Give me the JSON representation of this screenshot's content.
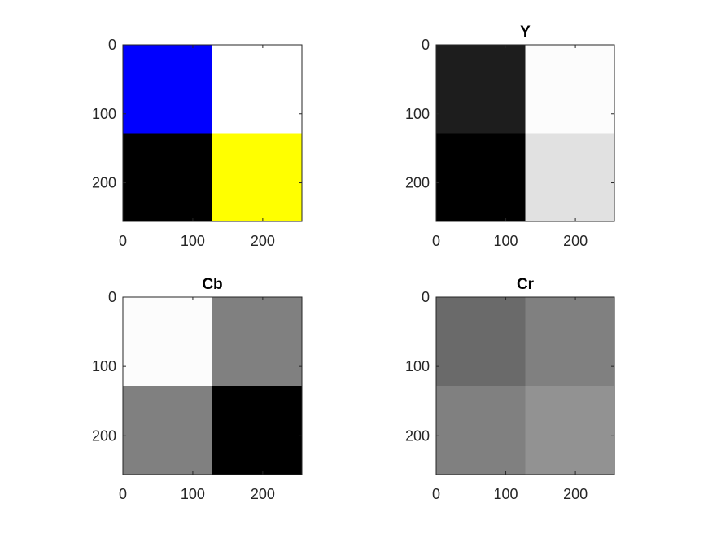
{
  "chart_data": [
    {
      "type": "heatmap",
      "title": "",
      "colormap": "rgb",
      "x_range": [
        0,
        256
      ],
      "y_range": [
        0,
        256
      ],
      "y_reversed": true,
      "x_ticks": [
        "0",
        "100",
        "200"
      ],
      "y_ticks": [
        "0",
        "100",
        "200"
      ],
      "x_tick_values": [
        0,
        100,
        200
      ],
      "y_tick_values": [
        0,
        100,
        200
      ],
      "cell_edges": [
        0,
        128,
        256
      ],
      "cells": [
        [
          "#0000ff",
          "#ffffff"
        ],
        [
          "#000000",
          "#ffff00"
        ]
      ]
    },
    {
      "type": "heatmap",
      "title": "Y",
      "colormap": "gray",
      "x_range": [
        0,
        256
      ],
      "y_range": [
        0,
        256
      ],
      "y_reversed": true,
      "x_ticks": [
        "0",
        "100",
        "200"
      ],
      "y_ticks": [
        "0",
        "100",
        "200"
      ],
      "x_tick_values": [
        0,
        100,
        200
      ],
      "y_tick_values": [
        0,
        100,
        200
      ],
      "cell_edges": [
        0,
        128,
        256
      ],
      "cells": [
        [
          "#1d1d1d",
          "#fcfcfc"
        ],
        [
          "#000000",
          "#e1e1e1"
        ]
      ]
    },
    {
      "type": "heatmap",
      "title": "Cb",
      "colormap": "gray",
      "x_range": [
        0,
        256
      ],
      "y_range": [
        0,
        256
      ],
      "y_reversed": true,
      "x_ticks": [
        "0",
        "100",
        "200"
      ],
      "y_ticks": [
        "0",
        "100",
        "200"
      ],
      "x_tick_values": [
        0,
        100,
        200
      ],
      "y_tick_values": [
        0,
        100,
        200
      ],
      "cell_edges": [
        0,
        128,
        256
      ],
      "cells": [
        [
          "#fcfcfc",
          "#808080"
        ],
        [
          "#808080",
          "#000000"
        ]
      ]
    },
    {
      "type": "heatmap",
      "title": "Cr",
      "colormap": "gray",
      "x_range": [
        0,
        256
      ],
      "y_range": [
        0,
        256
      ],
      "y_reversed": true,
      "x_ticks": [
        "0",
        "100",
        "200"
      ],
      "y_ticks": [
        "0",
        "100",
        "200"
      ],
      "x_tick_values": [
        0,
        100,
        200
      ],
      "y_tick_values": [
        0,
        100,
        200
      ],
      "cell_edges": [
        0,
        128,
        256
      ],
      "cells": [
        [
          "#6a6a6a",
          "#808080"
        ],
        [
          "#808080",
          "#929292"
        ]
      ]
    }
  ]
}
